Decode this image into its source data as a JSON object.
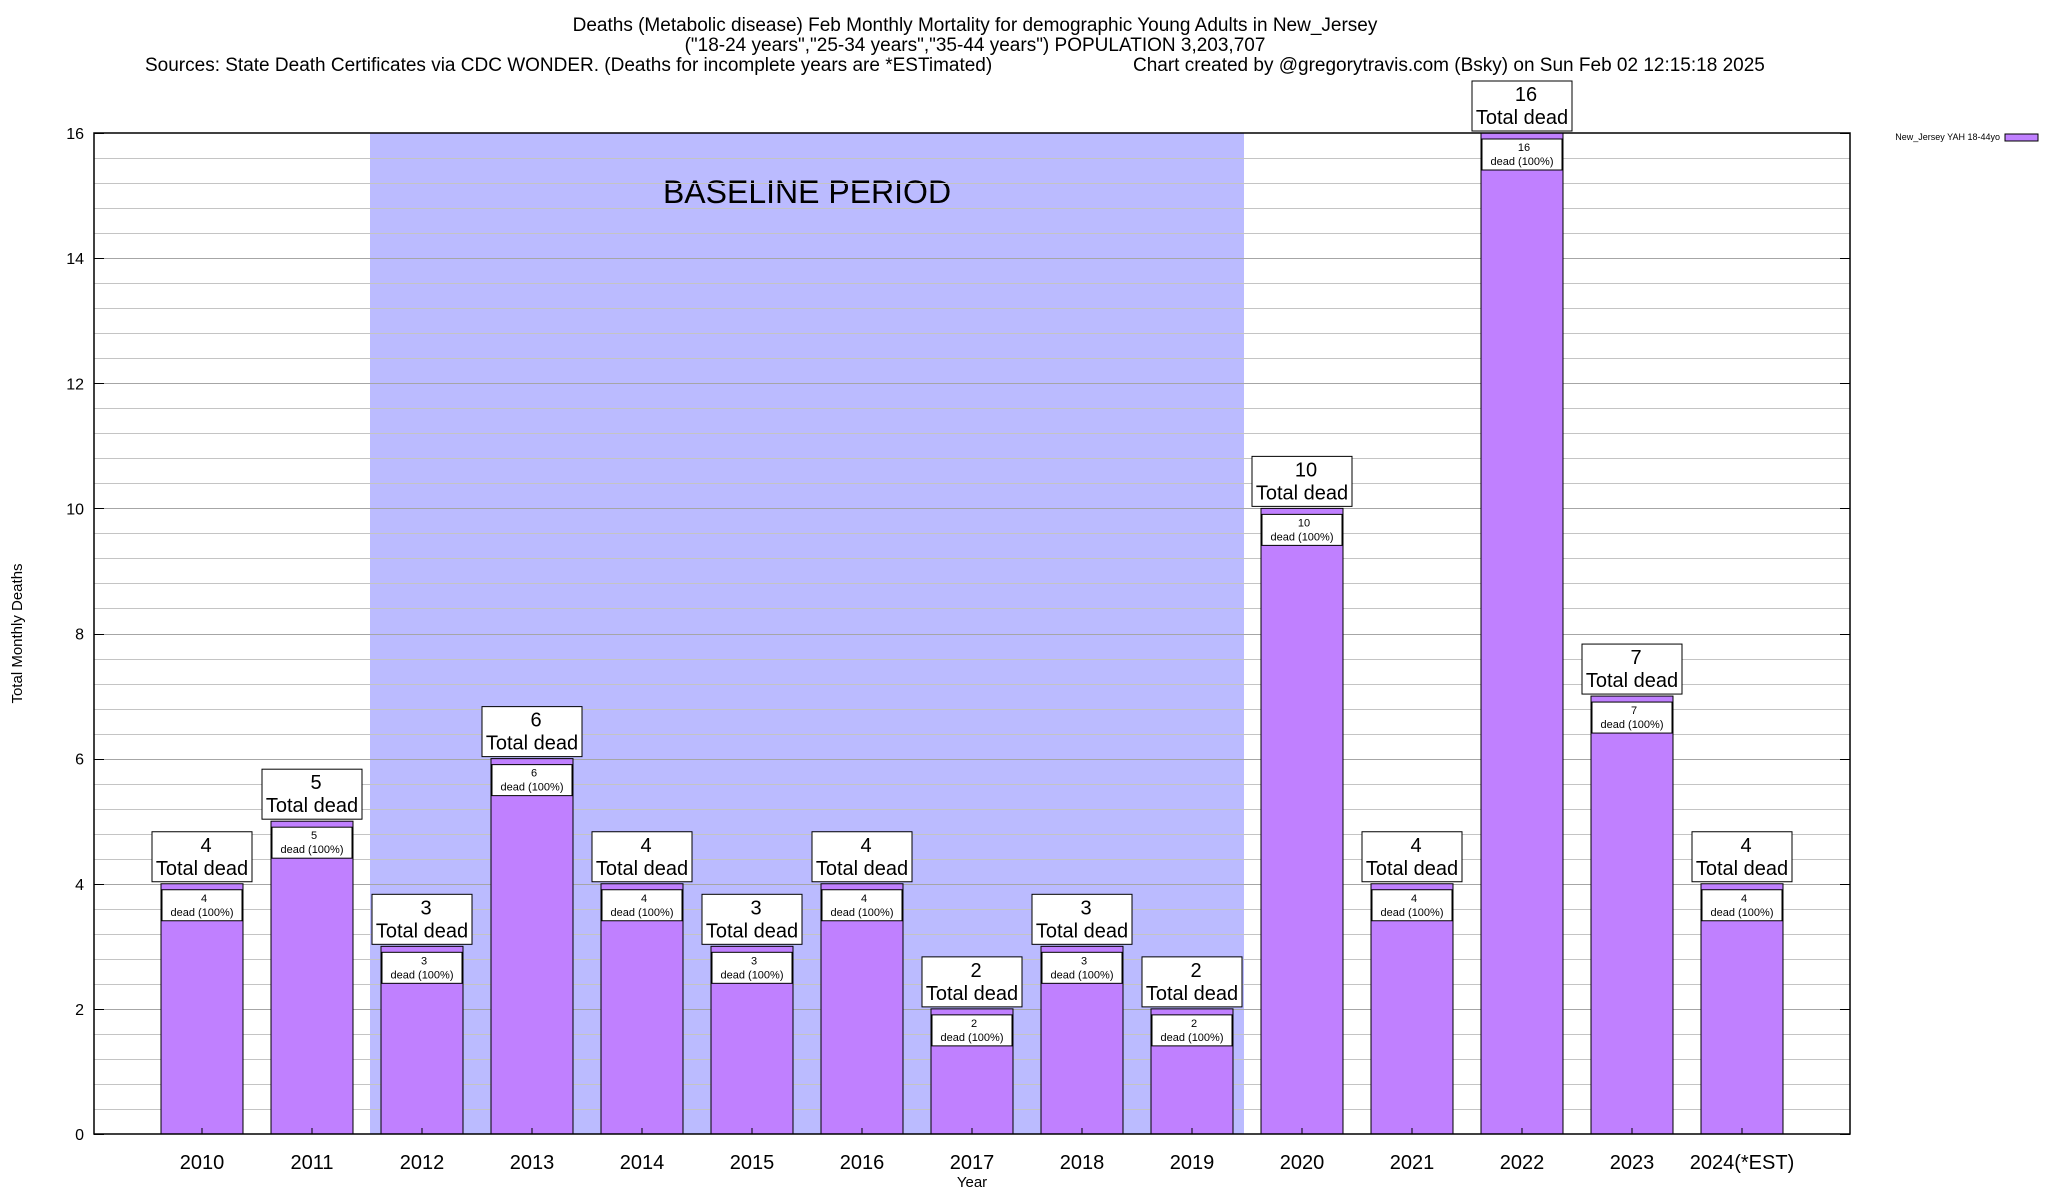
{
  "chart_data": {
    "type": "bar",
    "title": {
      "line1": "Deaths (Metabolic disease) Feb Monthly Mortality for demographic Young Adults in New_Jersey",
      "line2": "(\"18-24 years\",\"25-34 years\",\"35-44 years\") POPULATION 3,203,707",
      "line3_left": "Sources: State Death Certificates via CDC WONDER. (Deaths for incomplete years are *ESTimated)",
      "line3_right": "Chart created by @gregorytravis.com (Bsky) on Sun Feb 02 12:15:18 2025"
    },
    "xlabel": "Year",
    "ylabel": "Total Monthly Deaths",
    "ylim": [
      0,
      16
    ],
    "y_ticks": [
      0,
      2,
      4,
      6,
      8,
      10,
      12,
      14,
      16
    ],
    "y_minor_step": 0.4,
    "categories": [
      "2010",
      "2011",
      "2012",
      "2013",
      "2014",
      "2015",
      "2016",
      "2017",
      "2018",
      "2019",
      "2020",
      "2021",
      "2022",
      "2023",
      "2024(*EST)"
    ],
    "series": [
      {
        "name": "New_Jersey YAH 18-44yo",
        "color": "#c080ff",
        "values": [
          4,
          5,
          3,
          6,
          4,
          3,
          4,
          2,
          3,
          2,
          10,
          4,
          16,
          7,
          4
        ]
      }
    ],
    "total_label_suffix": "Total dead",
    "inner_label_suffix": "dead (100%)",
    "baseline": {
      "label": "BASELINE PERIOD",
      "start_category": "2012",
      "end_category": "2019",
      "color": "#bbbbff"
    },
    "legend": {
      "position": "top-right",
      "entry": "New_Jersey YAH 18-44yo"
    },
    "grid": true
  }
}
